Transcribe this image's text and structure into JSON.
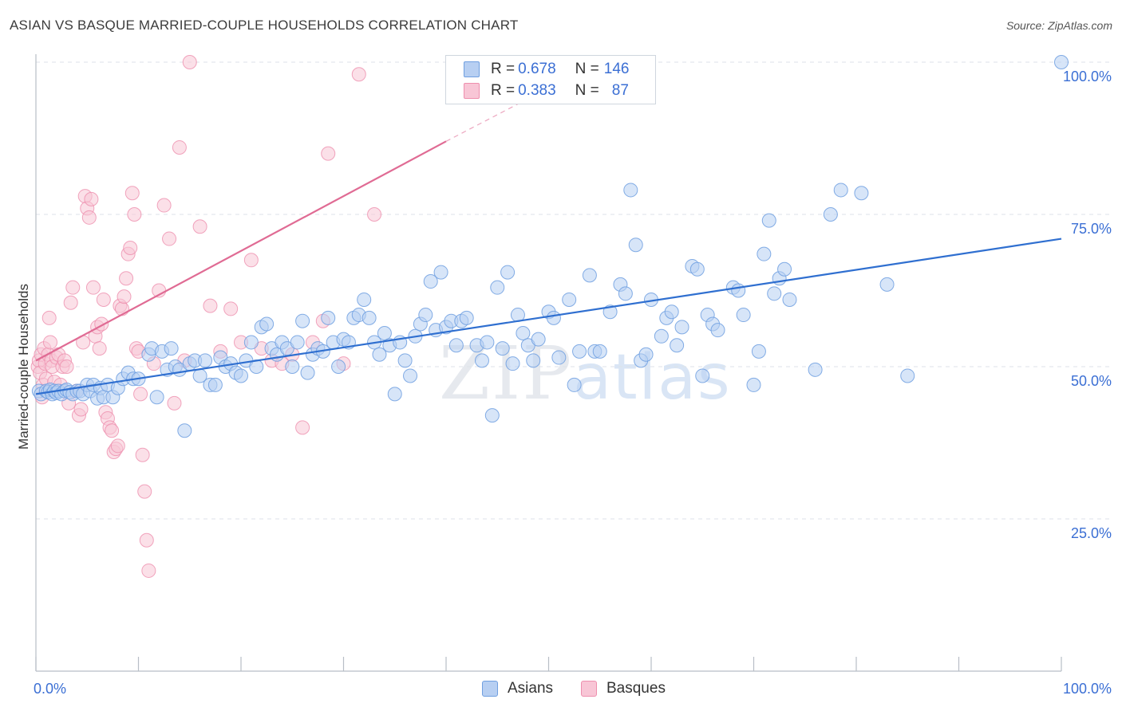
{
  "title": "ASIAN VS BASQUE MARRIED-COUPLE HOUSEHOLDS CORRELATION CHART",
  "source": "Source: ZipAtlas.com",
  "watermark": {
    "zip": "ZIP",
    "atlas": "atlas"
  },
  "legend": {
    "asian": {
      "r_label": "R = ",
      "r_value": "0.678",
      "n_label": "N = ",
      "n_value": "146"
    },
    "basque": {
      "r_label": "R = ",
      "r_value": "0.383",
      "n_label": "N = ",
      "n_value": "87"
    }
  },
  "colors": {
    "asian": "#6f9fe0",
    "asian_fill": "#b7cff2",
    "asian_line": "#2f6fd0",
    "basque": "#ee8fae",
    "basque_fill": "#f8c6d6",
    "basque_line": "#e06b94",
    "axis_text": "#3b6fd4"
  },
  "chart_data": {
    "type": "scatter",
    "title": "ASIAN VS BASQUE MARRIED-COUPLE HOUSEHOLDS CORRELATION CHART",
    "xlabel": "",
    "ylabel": "Married-couple Households",
    "xlim": [
      0,
      100
    ],
    "ylim": [
      0,
      105
    ],
    "x_tick_labels": [
      "0.0%",
      "100.0%"
    ],
    "y_tick_values": [
      25,
      50,
      75,
      100
    ],
    "y_tick_labels": [
      "25.0%",
      "50.0%",
      "75.0%",
      "100.0%"
    ],
    "legend_bottom": [
      "Asians",
      "Basques"
    ],
    "series": [
      {
        "name": "Asians",
        "trendline": {
          "x": [
            0,
            100
          ],
          "y": [
            45.5,
            71
          ]
        },
        "points": [
          [
            0.3,
            46
          ],
          [
            0.5,
            45.5
          ],
          [
            1,
            46
          ],
          [
            1.2,
            45.8
          ],
          [
            1.4,
            46.2
          ],
          [
            1.6,
            45.5
          ],
          [
            1.8,
            46
          ],
          [
            2,
            45.7
          ],
          [
            2.2,
            46
          ],
          [
            2.5,
            45.5
          ],
          [
            2.8,
            46
          ],
          [
            3,
            46.2
          ],
          [
            3.3,
            45.8
          ],
          [
            3.6,
            45.5
          ],
          [
            4,
            46
          ],
          [
            4.3,
            46
          ],
          [
            4.6,
            45.5
          ],
          [
            5,
            47
          ],
          [
            5.3,
            46
          ],
          [
            5.6,
            47
          ],
          [
            6,
            44.8
          ],
          [
            6.3,
            46.5
          ],
          [
            6.6,
            45
          ],
          [
            7,
            47
          ],
          [
            7.5,
            45
          ],
          [
            8,
            46.5
          ],
          [
            8.5,
            48
          ],
          [
            9,
            49
          ],
          [
            9.5,
            48
          ],
          [
            10,
            48
          ],
          [
            11,
            52
          ],
          [
            11.3,
            53
          ],
          [
            11.8,
            45
          ],
          [
            12.3,
            52.5
          ],
          [
            12.8,
            49.5
          ],
          [
            13.2,
            53
          ],
          [
            13.6,
            50
          ],
          [
            14,
            49.5
          ],
          [
            14.5,
            39.5
          ],
          [
            15,
            50.5
          ],
          [
            15.5,
            51
          ],
          [
            16,
            48.5
          ],
          [
            16.5,
            51
          ],
          [
            17,
            47
          ],
          [
            17.5,
            47
          ],
          [
            18,
            51.5
          ],
          [
            18.5,
            50
          ],
          [
            19,
            50.5
          ],
          [
            19.5,
            49
          ],
          [
            20,
            48.5
          ],
          [
            20.5,
            51
          ],
          [
            21,
            54
          ],
          [
            21.5,
            50
          ],
          [
            22,
            56.5
          ],
          [
            22.5,
            57
          ],
          [
            23,
            53
          ],
          [
            23.5,
            52
          ],
          [
            24,
            54
          ],
          [
            24.5,
            53
          ],
          [
            25,
            50
          ],
          [
            25.5,
            54
          ],
          [
            26,
            57.5
          ],
          [
            26.5,
            49
          ],
          [
            27,
            52
          ],
          [
            27.5,
            53
          ],
          [
            28,
            52.5
          ],
          [
            28.5,
            58
          ],
          [
            29,
            54
          ],
          [
            29.5,
            50
          ],
          [
            30,
            54.5
          ],
          [
            30.5,
            54
          ],
          [
            31,
            58
          ],
          [
            31.5,
            58.5
          ],
          [
            32,
            61
          ],
          [
            32.5,
            58
          ],
          [
            33,
            54
          ],
          [
            33.5,
            52
          ],
          [
            34,
            55.5
          ],
          [
            34.5,
            53.5
          ],
          [
            35,
            45.5
          ],
          [
            35.5,
            54
          ],
          [
            36,
            51
          ],
          [
            36.5,
            48.5
          ],
          [
            37,
            55
          ],
          [
            37.5,
            57
          ],
          [
            38,
            58.5
          ],
          [
            38.5,
            64
          ],
          [
            39,
            56
          ],
          [
            39.5,
            65.5
          ],
          [
            40,
            56.5
          ],
          [
            40.5,
            57.5
          ],
          [
            41,
            53.5
          ],
          [
            41.5,
            57.5
          ],
          [
            42,
            58
          ],
          [
            43,
            53.5
          ],
          [
            43.5,
            51
          ],
          [
            44,
            54
          ],
          [
            44.5,
            42
          ],
          [
            45,
            63
          ],
          [
            45.5,
            53
          ],
          [
            46,
            65.5
          ],
          [
            46.5,
            50.5
          ],
          [
            47,
            58.5
          ],
          [
            47.5,
            55.5
          ],
          [
            48,
            53.5
          ],
          [
            48.5,
            51
          ],
          [
            49,
            54.5
          ],
          [
            50,
            59
          ],
          [
            50.5,
            58
          ],
          [
            51,
            51.5
          ],
          [
            52,
            61
          ],
          [
            52.5,
            47
          ],
          [
            53,
            52.5
          ],
          [
            54,
            65
          ],
          [
            54.5,
            52.5
          ],
          [
            55,
            52.5
          ],
          [
            56,
            59
          ],
          [
            57,
            63.5
          ],
          [
            57.5,
            62
          ],
          [
            58,
            79
          ],
          [
            58.5,
            70
          ],
          [
            59,
            51
          ],
          [
            59.5,
            52
          ],
          [
            60,
            61
          ],
          [
            61,
            55
          ],
          [
            61.5,
            58
          ],
          [
            62,
            59
          ],
          [
            62.5,
            53.5
          ],
          [
            63,
            56.5
          ],
          [
            64,
            66.5
          ],
          [
            64.5,
            66
          ],
          [
            65,
            48.5
          ],
          [
            65.5,
            58.5
          ],
          [
            66,
            57
          ],
          [
            66.5,
            56
          ],
          [
            68,
            63
          ],
          [
            68.5,
            62.5
          ],
          [
            69,
            58.5
          ],
          [
            70,
            47
          ],
          [
            70.5,
            52.5
          ],
          [
            71,
            68.5
          ],
          [
            71.5,
            74
          ],
          [
            72,
            62
          ],
          [
            72.5,
            64.5
          ],
          [
            73,
            66
          ],
          [
            73.5,
            61
          ],
          [
            76,
            49.5
          ],
          [
            77.5,
            75
          ],
          [
            78.5,
            79
          ],
          [
            80.5,
            78.5
          ],
          [
            83,
            63.5
          ],
          [
            85,
            48.5
          ],
          [
            100,
            100
          ]
        ]
      },
      {
        "name": "Basques",
        "trendline": {
          "x": [
            0,
            40
          ],
          "y": [
            51,
            87
          ],
          "dashed_to": {
            "x": 48,
            "y": 94
          }
        },
        "points": [
          [
            0.2,
            50
          ],
          [
            0.3,
            51
          ],
          [
            0.4,
            49
          ],
          [
            0.5,
            52
          ],
          [
            0.6,
            45
          ],
          [
            0.7,
            47
          ],
          [
            0.8,
            53
          ],
          [
            0.9,
            50.5
          ],
          [
            1,
            48
          ],
          [
            1.2,
            52
          ],
          [
            1.3,
            58
          ],
          [
            1.4,
            54
          ],
          [
            1.5,
            51
          ],
          [
            1.6,
            50
          ],
          [
            1.8,
            47.5
          ],
          [
            2,
            51.5
          ],
          [
            2.2,
            52
          ],
          [
            2.4,
            47
          ],
          [
            2.6,
            50
          ],
          [
            2.8,
            51
          ],
          [
            3,
            50
          ],
          [
            3.2,
            44
          ],
          [
            3.4,
            60.5
          ],
          [
            3.6,
            63
          ],
          [
            4,
            46
          ],
          [
            4.2,
            42
          ],
          [
            4.4,
            43
          ],
          [
            4.6,
            54
          ],
          [
            4.8,
            78
          ],
          [
            5,
            76
          ],
          [
            5.2,
            74.5
          ],
          [
            5.4,
            77.5
          ],
          [
            5.6,
            63
          ],
          [
            5.8,
            55
          ],
          [
            6,
            56.5
          ],
          [
            6.2,
            53
          ],
          [
            6.4,
            57
          ],
          [
            6.6,
            61
          ],
          [
            6.8,
            42.5
          ],
          [
            7,
            41.5
          ],
          [
            7.2,
            40
          ],
          [
            7.4,
            39.5
          ],
          [
            7.6,
            36
          ],
          [
            7.8,
            36.5
          ],
          [
            8,
            37
          ],
          [
            8.2,
            60
          ],
          [
            8.4,
            59.5
          ],
          [
            8.6,
            61.5
          ],
          [
            8.8,
            64.5
          ],
          [
            9,
            68.5
          ],
          [
            9.2,
            69.5
          ],
          [
            9.4,
            78.5
          ],
          [
            9.6,
            75
          ],
          [
            9.8,
            53
          ],
          [
            10,
            52.5
          ],
          [
            10.2,
            45.5
          ],
          [
            10.4,
            35.5
          ],
          [
            10.6,
            29.5
          ],
          [
            10.8,
            21.5
          ],
          [
            11,
            16.5
          ],
          [
            11.5,
            50.5
          ],
          [
            12,
            62.5
          ],
          [
            12.5,
            76.5
          ],
          [
            13,
            71
          ],
          [
            13.5,
            44
          ],
          [
            14,
            86
          ],
          [
            14.5,
            51
          ],
          [
            15,
            100
          ],
          [
            16,
            73
          ],
          [
            17,
            60
          ],
          [
            18,
            52.5
          ],
          [
            19,
            59.5
          ],
          [
            20,
            54
          ],
          [
            21,
            67.5
          ],
          [
            22,
            53
          ],
          [
            23,
            51
          ],
          [
            24,
            50.5
          ],
          [
            25,
            52
          ],
          [
            26,
            40
          ],
          [
            27,
            54
          ],
          [
            28,
            57.5
          ],
          [
            28.5,
            85
          ],
          [
            30,
            50.5
          ],
          [
            31.5,
            98
          ],
          [
            33,
            75
          ]
        ]
      }
    ]
  }
}
